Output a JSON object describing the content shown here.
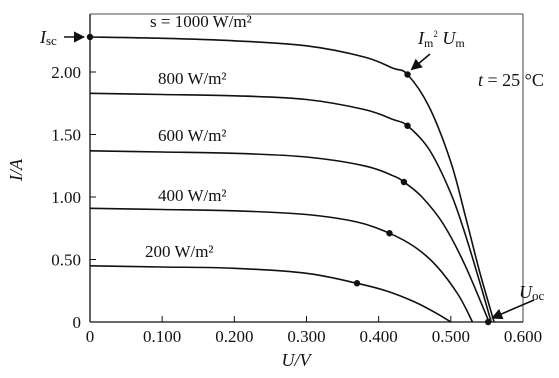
{
  "chart_data": {
    "type": "line",
    "xlabel": "U/V",
    "ylabel": "I/A",
    "xlim": [
      0,
      0.6
    ],
    "ylim": [
      0,
      2.5
    ],
    "x_ticks": [
      "0",
      "0.100",
      "0.200",
      "0.300",
      "0.400",
      "0.500",
      "0.600"
    ],
    "y_ticks": [
      "0",
      "0.50",
      "1.00",
      "1.50",
      "2.00"
    ],
    "series": [
      {
        "name": "s = 1000 W/m²",
        "isc": 2.28,
        "uoc": 0.56,
        "mpp": [
          0.44,
          1.98
        ],
        "points": [
          [
            0,
            2.28
          ],
          [
            0.1,
            2.27
          ],
          [
            0.2,
            2.25
          ],
          [
            0.3,
            2.21
          ],
          [
            0.38,
            2.12
          ],
          [
            0.42,
            2.03
          ],
          [
            0.44,
            1.98
          ],
          [
            0.47,
            1.72
          ],
          [
            0.5,
            1.28
          ],
          [
            0.52,
            0.85
          ],
          [
            0.54,
            0.4
          ],
          [
            0.56,
            0
          ]
        ]
      },
      {
        "name": "800 W/m²",
        "isc": 1.83,
        "uoc": 0.556,
        "mpp": [
          0.44,
          1.57
        ],
        "points": [
          [
            0,
            1.83
          ],
          [
            0.1,
            1.82
          ],
          [
            0.2,
            1.81
          ],
          [
            0.3,
            1.78
          ],
          [
            0.38,
            1.7
          ],
          [
            0.42,
            1.62
          ],
          [
            0.44,
            1.57
          ],
          [
            0.47,
            1.38
          ],
          [
            0.5,
            1.03
          ],
          [
            0.52,
            0.7
          ],
          [
            0.54,
            0.32
          ],
          [
            0.556,
            0
          ]
        ]
      },
      {
        "name": "600 W/m²",
        "isc": 1.37,
        "uoc": 0.553,
        "mpp": [
          0.435,
          1.12
        ],
        "points": [
          [
            0,
            1.37
          ],
          [
            0.1,
            1.36
          ],
          [
            0.2,
            1.35
          ],
          [
            0.3,
            1.32
          ],
          [
            0.38,
            1.25
          ],
          [
            0.42,
            1.17
          ],
          [
            0.435,
            1.12
          ],
          [
            0.46,
            1.0
          ],
          [
            0.49,
            0.78
          ],
          [
            0.52,
            0.45
          ],
          [
            0.553,
            0
          ]
        ]
      },
      {
        "name": "400 W/m²",
        "isc": 0.91,
        "uoc": 0.53,
        "mpp": [
          0.415,
          0.71
        ],
        "points": [
          [
            0,
            0.91
          ],
          [
            0.1,
            0.9
          ],
          [
            0.2,
            0.89
          ],
          [
            0.3,
            0.86
          ],
          [
            0.37,
            0.8
          ],
          [
            0.415,
            0.71
          ],
          [
            0.45,
            0.6
          ],
          [
            0.48,
            0.45
          ],
          [
            0.51,
            0.22
          ],
          [
            0.53,
            0
          ]
        ]
      },
      {
        "name": "200 W/m²",
        "isc": 0.45,
        "uoc": 0.5,
        "mpp": [
          0.37,
          0.31
        ],
        "points": [
          [
            0,
            0.45
          ],
          [
            0.1,
            0.44
          ],
          [
            0.2,
            0.43
          ],
          [
            0.3,
            0.39
          ],
          [
            0.37,
            0.31
          ],
          [
            0.41,
            0.25
          ],
          [
            0.45,
            0.16
          ],
          [
            0.48,
            0.07
          ],
          [
            0.5,
            0
          ]
        ]
      }
    ],
    "annotations": {
      "isc": "I",
      "isc_sub": "sc",
      "mpp_text": "I",
      "mpp_sub": "m",
      "mpp_sup": "2",
      "mpp_u": "U",
      "mpp_u_sub": "m",
      "temp": "t = 25 °C",
      "uoc": "U",
      "uoc_sub": "oc"
    }
  }
}
